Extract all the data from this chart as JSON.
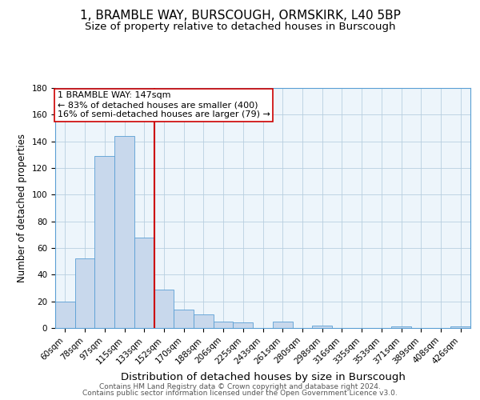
{
  "title": "1, BRAMBLE WAY, BURSCOUGH, ORMSKIRK, L40 5BP",
  "subtitle": "Size of property relative to detached houses in Burscough",
  "xlabel": "Distribution of detached houses by size in Burscough",
  "ylabel": "Number of detached properties",
  "bar_labels": [
    "60sqm",
    "78sqm",
    "97sqm",
    "115sqm",
    "133sqm",
    "152sqm",
    "170sqm",
    "188sqm",
    "206sqm",
    "225sqm",
    "243sqm",
    "261sqm",
    "280sqm",
    "298sqm",
    "316sqm",
    "335sqm",
    "353sqm",
    "371sqm",
    "389sqm",
    "408sqm",
    "426sqm"
  ],
  "bar_values": [
    20,
    52,
    129,
    144,
    68,
    29,
    14,
    10,
    5,
    4,
    0,
    5,
    0,
    2,
    0,
    0,
    0,
    1,
    0,
    0,
    1
  ],
  "bar_color": "#c8d8ec",
  "bar_edge_color": "#5a9fd4",
  "vline_x_index": 5,
  "vline_color": "#cc0000",
  "annotation_title": "1 BRAMBLE WAY: 147sqm",
  "annotation_line1": "← 83% of detached houses are smaller (400)",
  "annotation_line2": "16% of semi-detached houses are larger (79) →",
  "annotation_box_color": "#ffffff",
  "annotation_box_edge": "#cc0000",
  "ylim": [
    0,
    180
  ],
  "yticks": [
    0,
    20,
    40,
    60,
    80,
    100,
    120,
    140,
    160,
    180
  ],
  "footer1": "Contains HM Land Registry data © Crown copyright and database right 2024.",
  "footer2": "Contains public sector information licensed under the Open Government Licence v3.0.",
  "title_fontsize": 11,
  "subtitle_fontsize": 9.5,
  "xlabel_fontsize": 9.5,
  "ylabel_fontsize": 8.5,
  "tick_fontsize": 7.5,
  "ann_fontsize": 8,
  "footer_fontsize": 6.5
}
